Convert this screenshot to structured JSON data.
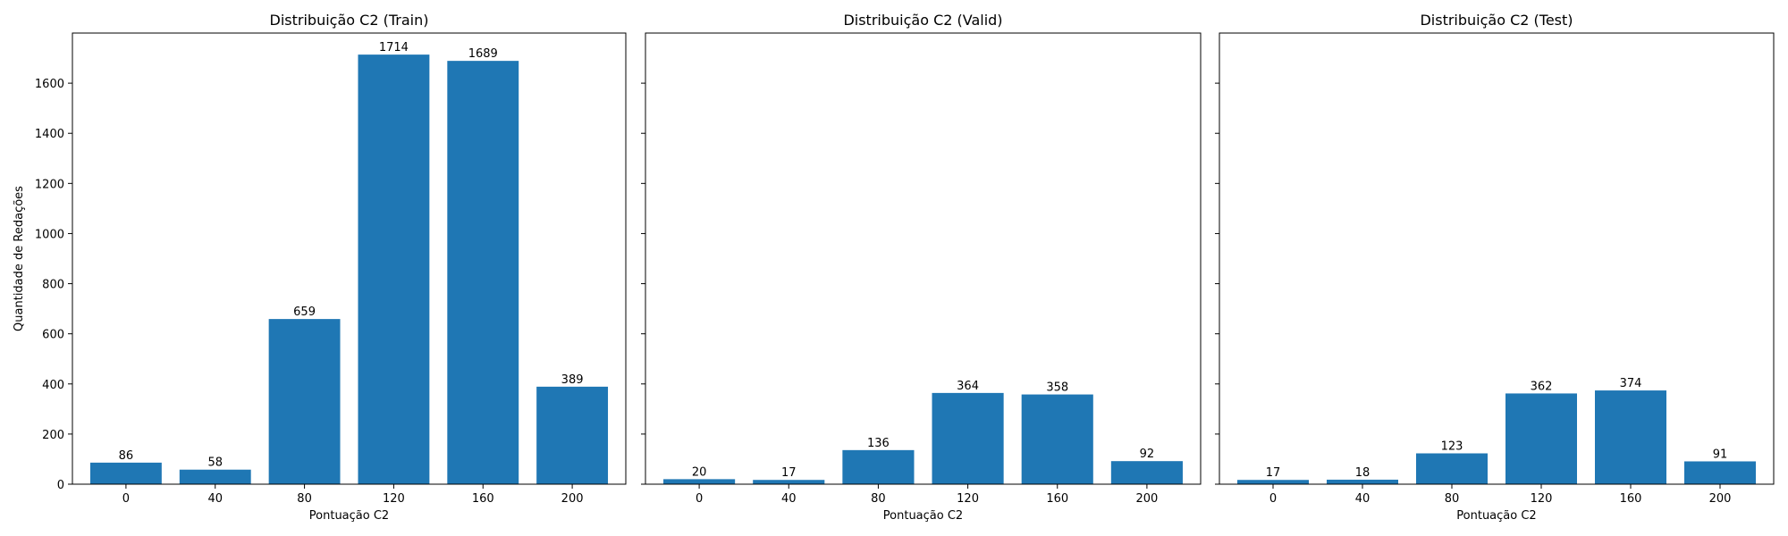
{
  "chart_data": [
    {
      "type": "bar",
      "title": "Distribuição C2 (Train)",
      "xlabel": "Pontuação C2",
      "ylabel": "Quantidade de Redações",
      "categories": [
        "0",
        "40",
        "80",
        "120",
        "160",
        "200"
      ],
      "values": [
        86,
        58,
        659,
        1714,
        1689,
        389
      ],
      "ylim": [
        0,
        1800
      ],
      "yticks": [
        0,
        200,
        400,
        600,
        800,
        1000,
        1200,
        1400,
        1600
      ],
      "color": "#1f77b4",
      "grid": false
    },
    {
      "type": "bar",
      "title": "Distribuição C2 (Valid)",
      "xlabel": "Pontuação C2",
      "ylabel": "",
      "categories": [
        "0",
        "40",
        "80",
        "120",
        "160",
        "200"
      ],
      "values": [
        20,
        17,
        136,
        364,
        358,
        92
      ],
      "ylim": [
        0,
        1800
      ],
      "yticks": [
        0,
        200,
        400,
        600,
        800,
        1000,
        1200,
        1400,
        1600
      ],
      "color": "#1f77b4",
      "grid": false
    },
    {
      "type": "bar",
      "title": "Distribuição C2 (Test)",
      "xlabel": "Pontuação C2",
      "ylabel": "",
      "categories": [
        "0",
        "40",
        "80",
        "120",
        "160",
        "200"
      ],
      "values": [
        17,
        18,
        123,
        362,
        374,
        91
      ],
      "ylim": [
        0,
        1800
      ],
      "yticks": [
        0,
        200,
        400,
        600,
        800,
        1000,
        1200,
        1400,
        1600
      ],
      "color": "#1f77b4",
      "grid": false
    }
  ]
}
